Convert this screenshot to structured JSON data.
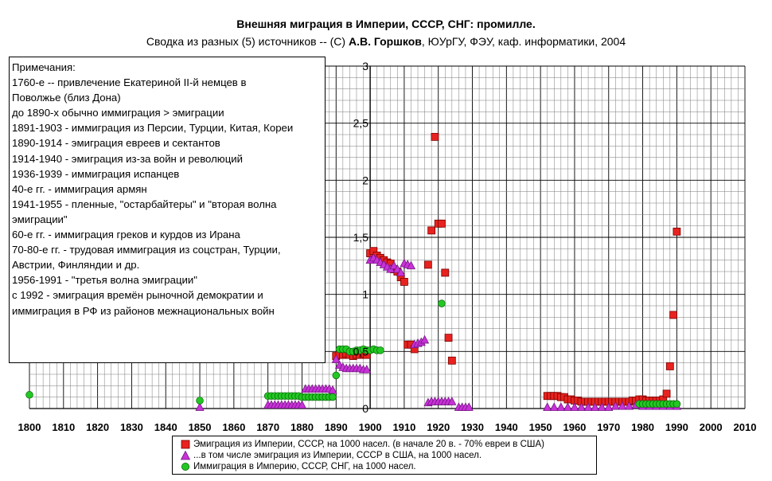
{
  "title": "Внешняя миграция в Империи, СССР, СНГ: промилле.",
  "subtitle": {
    "pre": "Сводка из разных (5) источников -- (С) ",
    "author": "А.В. Горшков",
    "post": ", ЮУрГУ, ФЭУ, каф. информатики, 2004"
  },
  "notes": [
    "Примечания:",
    "1760-е -- привлечение Екатериной II-й немцев в",
    "Поволжье (близ Дона)",
    "до 1890-х обычно иммиграция > эмиграции",
    "1891-1903 - иммиграция из Персии, Турции, Китая, Кореи",
    "1890-1914  - эмиграция евреев и сектантов",
    "1914-1940 - эмиграция из-за войн и революций",
    "1936-1939 - иммиграция испанцев",
    "40-е гг. - иммиграция армян",
    "1941-1955 - пленные, \"остарбайтеры\" и \"вторая волна",
    "эмиграции\"",
    "60-е гг. - иммиграция греков и курдов из Ирана",
    "70-80-е гг. - трудовая иммиграция из соцстран, Турции,",
    "Австрии, Финляндии и др.",
    "1956-1991 - \"третья волна эмиграции\"",
    "с 1992 - эмиграция времён рыночной демократии и",
    "иммиграция в РФ из районов межнациональных войн"
  ],
  "chart_data": {
    "type": "scatter",
    "xlim": [
      1800,
      2010
    ],
    "ylim": [
      0,
      3
    ],
    "x_ticks": [
      "1800",
      "1810",
      "1820",
      "1830",
      "1840",
      "1850",
      "1860",
      "1870",
      "1880",
      "1890",
      "1900",
      "1910",
      "1920",
      "1930",
      "1940",
      "1950",
      "1960",
      "1970",
      "1980",
      "1990",
      "2000",
      "2010"
    ],
    "y_ticks": [
      {
        "value": 0,
        "label": "0"
      },
      {
        "value": 0.5,
        "label": "0,5"
      },
      {
        "value": 1,
        "label": "1"
      },
      {
        "value": 1.5,
        "label": "1,5"
      },
      {
        "value": 2,
        "label": "2"
      },
      {
        "value": 2.5,
        "label": "2,5"
      },
      {
        "value": 3,
        "label": "3"
      }
    ],
    "y_axis_position": "x=1900",
    "grid": true,
    "legend_position": "bottom",
    "series": [
      {
        "name": "Эмиграция из Империи, СССР, на 1000 насел. (в начале 20 в. - 70% евреи в США)",
        "marker": "square",
        "color": "#e8231f",
        "points": [
          [
            1890,
            0.46
          ],
          [
            1891,
            0.47
          ],
          [
            1892,
            0.47
          ],
          [
            1893,
            0.48
          ],
          [
            1894,
            0.47
          ],
          [
            1895,
            0.46
          ],
          [
            1896,
            0.47
          ],
          [
            1897,
            0.47
          ],
          [
            1898,
            0.48
          ],
          [
            1899,
            0.47
          ],
          [
            1900,
            1.36
          ],
          [
            1901,
            1.38
          ],
          [
            1902,
            1.34
          ],
          [
            1903,
            1.32
          ],
          [
            1904,
            1.3
          ],
          [
            1905,
            1.28
          ],
          [
            1906,
            1.27
          ],
          [
            1907,
            1.22
          ],
          [
            1908,
            1.2
          ],
          [
            1909,
            1.15
          ],
          [
            1910,
            1.11
          ],
          [
            1911,
            0.56
          ],
          [
            1912,
            0.56
          ],
          [
            1913,
            0.52
          ],
          [
            1917,
            1.26
          ],
          [
            1918,
            1.56
          ],
          [
            1919,
            2.38
          ],
          [
            1920,
            1.62
          ],
          [
            1921,
            1.62
          ],
          [
            1922,
            1.19
          ],
          [
            1923,
            0.62
          ],
          [
            1924,
            0.42
          ],
          [
            1952,
            0.11
          ],
          [
            1953,
            0.11
          ],
          [
            1954,
            0.11
          ],
          [
            1955,
            0.11
          ],
          [
            1956,
            0.1
          ],
          [
            1957,
            0.1
          ],
          [
            1958,
            0.08
          ],
          [
            1959,
            0.08
          ],
          [
            1960,
            0.07
          ],
          [
            1961,
            0.07
          ],
          [
            1962,
            0.06
          ],
          [
            1963,
            0.06
          ],
          [
            1964,
            0.06
          ],
          [
            1965,
            0.06
          ],
          [
            1966,
            0.06
          ],
          [
            1967,
            0.06
          ],
          [
            1968,
            0.06
          ],
          [
            1969,
            0.06
          ],
          [
            1970,
            0.06
          ],
          [
            1971,
            0.06
          ],
          [
            1972,
            0.06
          ],
          [
            1973,
            0.06
          ],
          [
            1974,
            0.06
          ],
          [
            1975,
            0.06
          ],
          [
            1976,
            0.06
          ],
          [
            1977,
            0.07
          ],
          [
            1978,
            0.07
          ],
          [
            1979,
            0.08
          ],
          [
            1980,
            0.08
          ],
          [
            1981,
            0.07
          ],
          [
            1982,
            0.07
          ],
          [
            1983,
            0.07
          ],
          [
            1984,
            0.07
          ],
          [
            1985,
            0.07
          ],
          [
            1986,
            0.08
          ],
          [
            1987,
            0.13
          ],
          [
            1988,
            0.37
          ],
          [
            1989,
            0.82
          ],
          [
            1990,
            1.55
          ]
        ]
      },
      {
        "name": "...в том числе эмиграция из Империи, СССР в США, на 1000 насел.",
        "marker": "triangle",
        "color": "#c832d8",
        "points": [
          [
            1850,
            0.01
          ],
          [
            1870,
            0.03
          ],
          [
            1871,
            0.03
          ],
          [
            1872,
            0.03
          ],
          [
            1873,
            0.03
          ],
          [
            1874,
            0.03
          ],
          [
            1875,
            0.03
          ],
          [
            1876,
            0.03
          ],
          [
            1877,
            0.03
          ],
          [
            1878,
            0.03
          ],
          [
            1879,
            0.03
          ],
          [
            1880,
            0.03
          ],
          [
            1881,
            0.17
          ],
          [
            1882,
            0.17
          ],
          [
            1883,
            0.17
          ],
          [
            1884,
            0.17
          ],
          [
            1885,
            0.17
          ],
          [
            1886,
            0.17
          ],
          [
            1887,
            0.17
          ],
          [
            1888,
            0.17
          ],
          [
            1889,
            0.16
          ],
          [
            1890,
            0.43
          ],
          [
            1891,
            0.38
          ],
          [
            1892,
            0.36
          ],
          [
            1893,
            0.35
          ],
          [
            1894,
            0.35
          ],
          [
            1895,
            0.35
          ],
          [
            1896,
            0.35
          ],
          [
            1897,
            0.35
          ],
          [
            1898,
            0.34
          ],
          [
            1899,
            0.34
          ],
          [
            1900,
            1.3
          ],
          [
            1901,
            1.32
          ],
          [
            1902,
            1.3
          ],
          [
            1903,
            1.28
          ],
          [
            1904,
            1.26
          ],
          [
            1905,
            1.24
          ],
          [
            1906,
            1.22
          ],
          [
            1907,
            1.25
          ],
          [
            1908,
            1.22
          ],
          [
            1909,
            1.19
          ],
          [
            1910,
            1.27
          ],
          [
            1911,
            1.26
          ],
          [
            1912,
            1.25
          ],
          [
            1913,
            0.56
          ],
          [
            1914,
            0.57
          ],
          [
            1915,
            0.58
          ],
          [
            1916,
            0.6
          ],
          [
            1917,
            0.05
          ],
          [
            1918,
            0.06
          ],
          [
            1919,
            0.06
          ],
          [
            1920,
            0.06
          ],
          [
            1921,
            0.06
          ],
          [
            1922,
            0.06
          ],
          [
            1923,
            0.06
          ],
          [
            1924,
            0.06
          ],
          [
            1926,
            0.01
          ],
          [
            1927,
            0.01
          ],
          [
            1928,
            0.01
          ],
          [
            1929,
            0.01
          ],
          [
            1952,
            0.01
          ],
          [
            1954,
            0.01
          ],
          [
            1956,
            0.01
          ],
          [
            1958,
            0.01
          ],
          [
            1960,
            0.01
          ],
          [
            1962,
            0.01
          ],
          [
            1964,
            0.01
          ],
          [
            1966,
            0.01
          ],
          [
            1968,
            0.01
          ],
          [
            1970,
            0.01
          ],
          [
            1972,
            0.02
          ],
          [
            1974,
            0.02
          ],
          [
            1976,
            0.02
          ],
          [
            1978,
            0.03
          ],
          [
            1980,
            0.02
          ],
          [
            1982,
            0.02
          ],
          [
            1984,
            0.02
          ],
          [
            1986,
            0.02
          ],
          [
            1988,
            0.02
          ],
          [
            1990,
            0.02
          ]
        ]
      },
      {
        "name": "Иммиграция в Империю, СССР, СНГ, на 1000 насел.",
        "marker": "circle",
        "color": "#22c822",
        "points": [
          [
            1800,
            0.12
          ],
          [
            1850,
            0.07
          ],
          [
            1870,
            0.11
          ],
          [
            1871,
            0.11
          ],
          [
            1872,
            0.11
          ],
          [
            1873,
            0.11
          ],
          [
            1874,
            0.11
          ],
          [
            1875,
            0.11
          ],
          [
            1876,
            0.11
          ],
          [
            1877,
            0.11
          ],
          [
            1878,
            0.11
          ],
          [
            1879,
            0.11
          ],
          [
            1880,
            0.1
          ],
          [
            1881,
            0.1
          ],
          [
            1882,
            0.1
          ],
          [
            1883,
            0.1
          ],
          [
            1884,
            0.1
          ],
          [
            1885,
            0.1
          ],
          [
            1886,
            0.1
          ],
          [
            1887,
            0.1
          ],
          [
            1888,
            0.1
          ],
          [
            1889,
            0.1
          ],
          [
            1890,
            0.29
          ],
          [
            1891,
            0.52
          ],
          [
            1892,
            0.52
          ],
          [
            1893,
            0.52
          ],
          [
            1894,
            0.5
          ],
          [
            1895,
            0.5
          ],
          [
            1896,
            0.51
          ],
          [
            1897,
            0.51
          ],
          [
            1898,
            0.52
          ],
          [
            1899,
            0.51
          ],
          [
            1900,
            0.51
          ],
          [
            1901,
            0.52
          ],
          [
            1902,
            0.51
          ],
          [
            1903,
            0.51
          ],
          [
            1921,
            0.92
          ],
          [
            1979,
            0.04
          ],
          [
            1980,
            0.04
          ],
          [
            1981,
            0.04
          ],
          [
            1982,
            0.04
          ],
          [
            1983,
            0.04
          ],
          [
            1984,
            0.04
          ],
          [
            1985,
            0.04
          ],
          [
            1986,
            0.04
          ],
          [
            1987,
            0.04
          ],
          [
            1988,
            0.04
          ],
          [
            1989,
            0.04
          ],
          [
            1990,
            0.04
          ]
        ]
      }
    ]
  }
}
